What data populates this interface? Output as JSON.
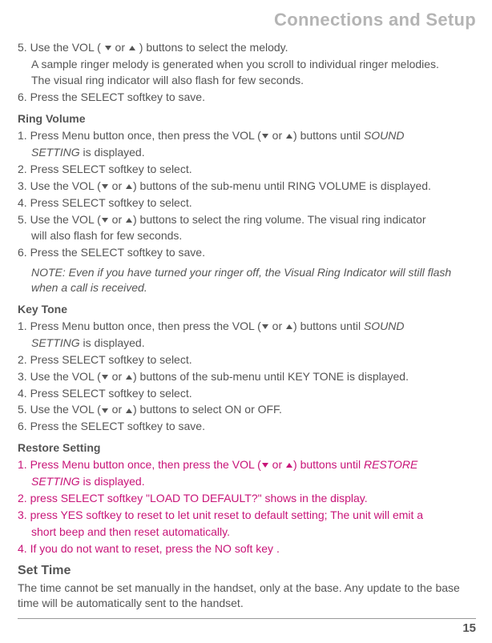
{
  "chapter_title": "Connections and Setup",
  "intro_steps": [
    {
      "n": "5.",
      "text_a": "Use the VOL (",
      "text_b": " or ",
      "text_c": ") buttons to select the melody.",
      "cont1": "A sample ringer melody is generated when you scroll to individual ringer melodies.",
      "cont2": "The visual ring indicator will also flash for few seconds."
    },
    {
      "n": "6.",
      "text": "Press the SELECT softkey to save."
    }
  ],
  "ring_volume": {
    "title": "Ring Volume",
    "steps": [
      {
        "n": "1.",
        "a": "Press Menu button once, then press the VOL (",
        "b": " or ",
        "c": ") buttons until ",
        "italic": "SOUND",
        "cont_italic": "SETTING",
        "cont_after": " is displayed."
      },
      {
        "n": "2.",
        "text": "Press SELECT softkey to select."
      },
      {
        "n": "3.",
        "a": "Use the VOL (",
        "b": " or ",
        "c": ") buttons of the sub-menu until RING VOLUME is displayed."
      },
      {
        "n": "4.",
        "text": "Press SELECT softkey to select."
      },
      {
        "n": "5.",
        "a": "Use the VOL (",
        "b": " or ",
        "c": ") buttons to select the ring volume. The visual ring indicator",
        "cont": "will also flash for few seconds."
      },
      {
        "n": "6.",
        "text": "Press the SELECT softkey to save."
      }
    ],
    "note": "NOTE: Even if you have turned your ringer off, the Visual Ring Indicator will still flash when a call is received."
  },
  "key_tone": {
    "title": "Key Tone",
    "steps": [
      {
        "n": "1.",
        "a": "Press Menu button once, then press the VOL (",
        "b": " or ",
        "c": ") buttons until ",
        "italic": "SOUND",
        "cont_italic": "SETTING",
        "cont_after": " is displayed."
      },
      {
        "n": "2.",
        "text": "Press SELECT softkey to select."
      },
      {
        "n": "3.",
        "a": "Use the VOL (",
        "b": " or ",
        "c": ") buttons of the sub-menu until KEY TONE is displayed."
      },
      {
        "n": "4.",
        "text": "Press SELECT softkey to select."
      },
      {
        "n": "5.",
        "a": "Use the VOL (",
        "b": " or ",
        "c": ") buttons to select ON or OFF."
      },
      {
        "n": "6.",
        "text": "Press the SELECT softkey to save."
      }
    ]
  },
  "restore": {
    "title": "Restore Setting",
    "steps": [
      {
        "n": "1.",
        "a": "Press Menu button once, then press the VOL (",
        "b": " or ",
        "c": ") buttons until ",
        "italic": "RESTORE",
        "cont_italic": "SETTING",
        "cont_after": " is displayed."
      },
      {
        "n": "2.",
        "text": "press SELECT softkey \"LOAD TO DEFAULT?\" shows in the display."
      },
      {
        "n": "3.",
        "text": "press YES softkey to reset to let unit reset to default setting; The unit will emit a",
        "cont": "short beep and then reset automatically."
      },
      {
        "n": "4.",
        "text": "If you do not want to reset, press the NO soft key ."
      }
    ]
  },
  "set_time": {
    "title": "Set Time",
    "body": "The time cannot be set manually in the handset, only at the base. Any update to the base time will be automatically sent to the handset."
  },
  "page_number": "15"
}
